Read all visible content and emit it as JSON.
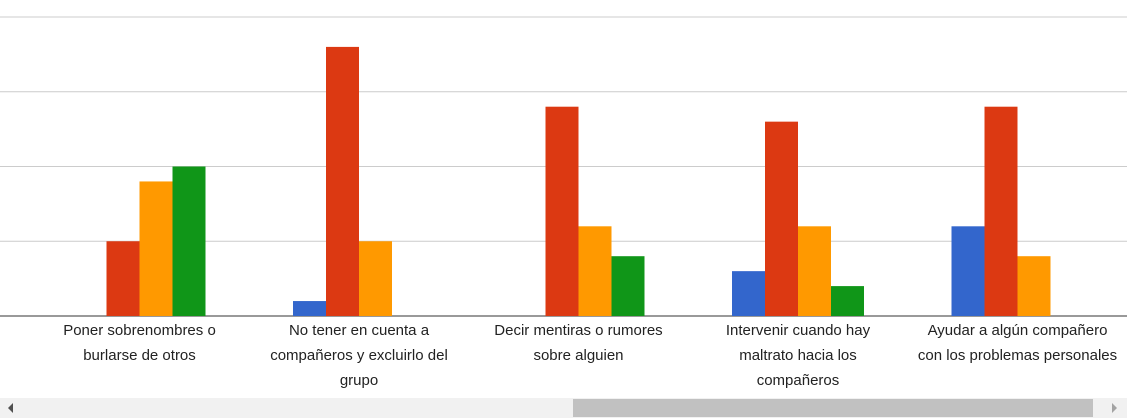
{
  "chart_data": {
    "type": "bar",
    "categories": [
      "Poner sobrenombres o burlarse de otros",
      "No tener en cuenta a compañeros y excluirlo del grupo",
      "Decir mentiras o rumores sobre alguien",
      "Intervenir cuando hay maltrato hacia los compañeros",
      "Ayudar a algún compañero con los problemas personales"
    ],
    "series": [
      {
        "color": "#3366cc",
        "values": [
          0,
          1,
          0,
          3,
          6
        ]
      },
      {
        "color": "#dc3912",
        "values": [
          5,
          18,
          14,
          13,
          14
        ]
      },
      {
        "color": "#ff9900",
        "values": [
          9,
          5,
          6,
          6,
          4
        ]
      },
      {
        "color": "#109618",
        "values": [
          10,
          0,
          4,
          2,
          0
        ]
      }
    ],
    "ylim": [
      0,
      20
    ],
    "yticks": [
      0,
      5,
      10,
      15,
      20
    ],
    "grid": true
  }
}
